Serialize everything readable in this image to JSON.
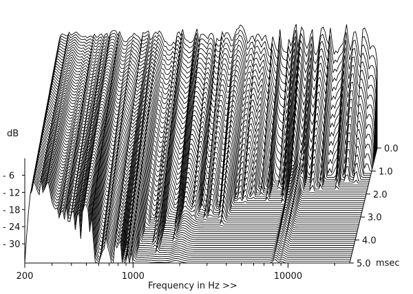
{
  "chart_data": {
    "type": "waterfall",
    "title": "",
    "xlabel": "Frequency in Hz >>",
    "ylabel": "dB",
    "zlabel": "msec",
    "x_scale": "log",
    "xlim": [
      200,
      25000
    ],
    "ylim": [
      -36,
      0
    ],
    "zlim": [
      0,
      5
    ],
    "x_ticks": [
      {
        "value": 200,
        "label": "200"
      },
      {
        "value": 1000,
        "label": "1000"
      },
      {
        "value": 10000,
        "label": "10000"
      }
    ],
    "y_ticks": [
      {
        "value": -6,
        "label": "- 6"
      },
      {
        "value": -12,
        "label": "- 12"
      },
      {
        "value": -18,
        "label": "- 18"
      },
      {
        "value": -24,
        "label": "- 24"
      },
      {
        "value": -30,
        "label": "- 30"
      }
    ],
    "z_ticks": [
      {
        "value": 0,
        "label": "0.0"
      },
      {
        "value": 1,
        "label": "1.0"
      },
      {
        "value": 2,
        "label": "2.0"
      },
      {
        "value": 3,
        "label": "3.0"
      },
      {
        "value": 4,
        "label": "4.0"
      },
      {
        "value": 5,
        "label": "5.0"
      }
    ],
    "slices": 60,
    "grid": false,
    "line_color": "#000000",
    "fill_color": "#ffffff"
  }
}
